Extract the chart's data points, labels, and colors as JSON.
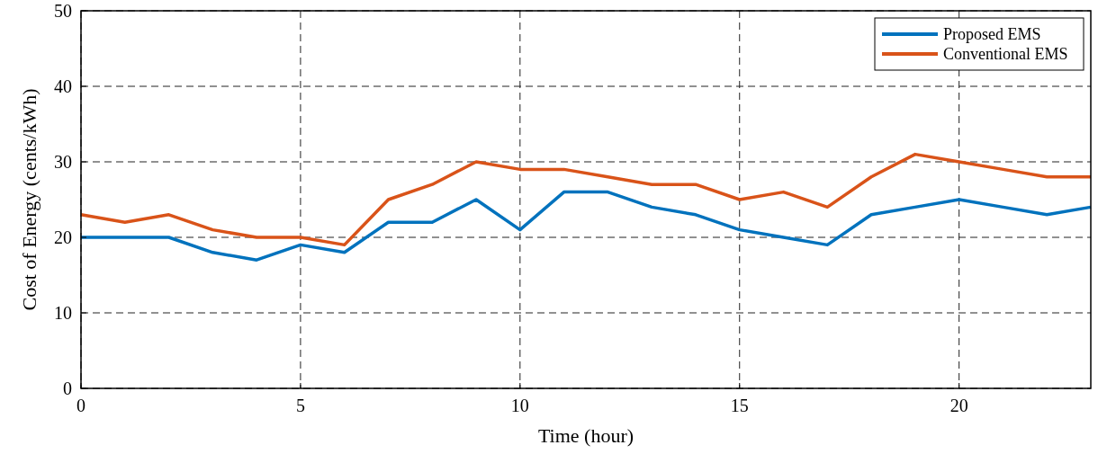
{
  "chart_data": {
    "type": "line",
    "xlabel": "Time (hour)",
    "ylabel": "Cost of Energy (cents/kWh)",
    "x": [
      0,
      1,
      2,
      3,
      4,
      5,
      6,
      7,
      8,
      9,
      10,
      11,
      12,
      13,
      14,
      15,
      16,
      17,
      18,
      19,
      20,
      21,
      22,
      23
    ],
    "series": [
      {
        "name": "Proposed EMS",
        "color": "#0072bd",
        "values": [
          20,
          20,
          20,
          18,
          17,
          19,
          18,
          22,
          22,
          25,
          21,
          26,
          26,
          24,
          23,
          21,
          20,
          19,
          23,
          24,
          25,
          24,
          23,
          24
        ]
      },
      {
        "name": "Conventional EMS",
        "color": "#d95319",
        "values": [
          23,
          22,
          23,
          21,
          20,
          20,
          19,
          25,
          27,
          30,
          29,
          29,
          28,
          27,
          27,
          25,
          26,
          24,
          28,
          31,
          30,
          29,
          28,
          28
        ]
      }
    ],
    "xlim": [
      0,
      23
    ],
    "xticks": [
      0,
      5,
      10,
      15,
      20
    ],
    "ylim": [
      0,
      50
    ],
    "yticks": [
      0,
      10,
      20,
      30,
      40,
      50
    ],
    "grid": true,
    "legend": "top right",
    "marker": "none",
    "line_style": "solid"
  }
}
